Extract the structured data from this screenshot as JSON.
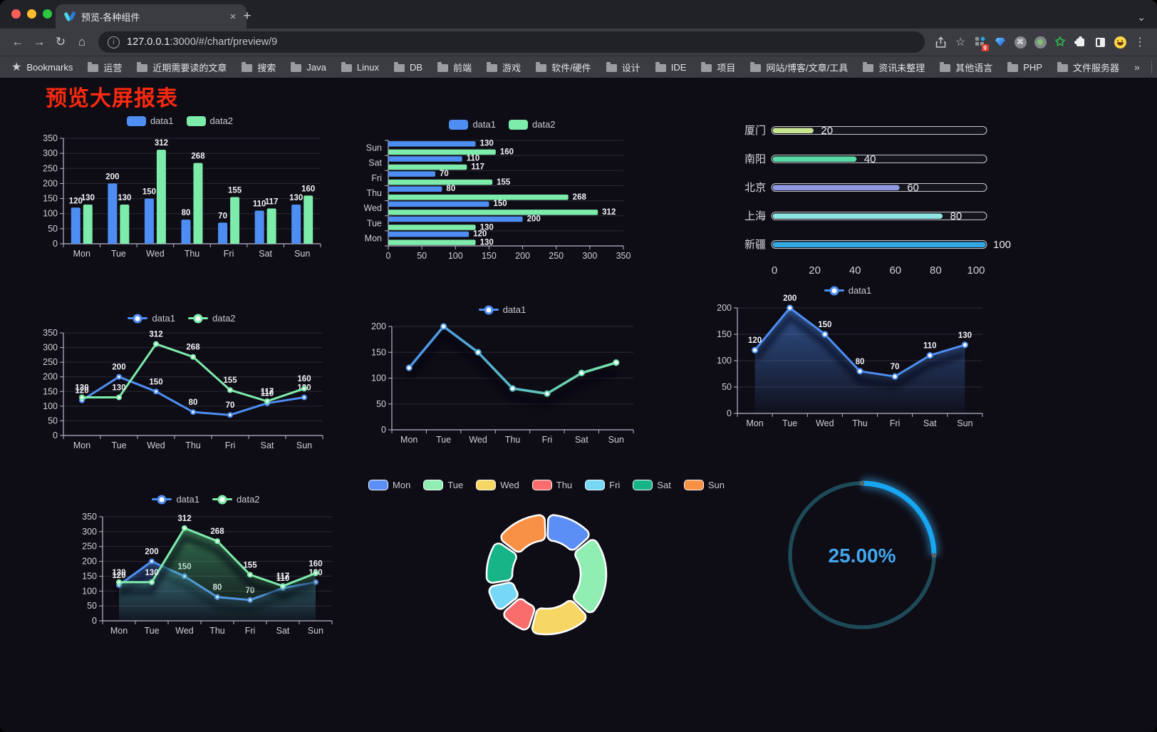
{
  "browser": {
    "tab_title": "预览-各种组件",
    "url_host": "127.0.0.1",
    "url_rest": ":3000/#/chart/preview/9",
    "bookmarks_label": "Bookmarks",
    "bookmarks": [
      "运营",
      "近期需要读的文章",
      "搜索",
      "Java",
      "Linux",
      "DB",
      "前端",
      "游戏",
      "软件/硬件",
      "设计",
      "IDE",
      "项目",
      "网站/博客/文章/工具",
      "资讯未整理",
      "其他语言",
      "PHP",
      "文件服务器"
    ],
    "bookmarks_overflow": "»",
    "other_bookmarks": "其他书签",
    "extension_badge": "9",
    "new_tab_label": "+",
    "close_tab_label": "×"
  },
  "page": {
    "title": "预览大屏报表",
    "title_color": "#fb2a10",
    "background": "#0e0c15"
  },
  "chart_data": [
    {
      "id": "c1",
      "type": "bar",
      "categories": [
        "Mon",
        "Tue",
        "Wed",
        "Thu",
        "Fri",
        "Sat",
        "Sun"
      ],
      "series": [
        {
          "name": "data1",
          "color": "#4e8ef2",
          "values": [
            120,
            200,
            150,
            80,
            70,
            110,
            130
          ]
        },
        {
          "name": "data2",
          "color": "#7debaa",
          "values": [
            130,
            130,
            312,
            268,
            155,
            117,
            160
          ]
        }
      ],
      "ylim": [
        0,
        350
      ],
      "ystep": 50,
      "labels": true,
      "legend_style": "rect",
      "grid": true
    },
    {
      "id": "c2",
      "type": "hbar",
      "categories": [
        "Mon",
        "Tue",
        "Wed",
        "Thu",
        "Fri",
        "Sat",
        "Sun"
      ],
      "series": [
        {
          "name": "data1",
          "color": "#4e8ef2",
          "values": [
            120,
            200,
            150,
            80,
            70,
            110,
            130
          ]
        },
        {
          "name": "data2",
          "color": "#7debaa",
          "values": [
            130,
            130,
            312,
            268,
            155,
            117,
            160
          ]
        }
      ],
      "xlim": [
        0,
        350
      ],
      "xstep": 50,
      "labels": true,
      "legend_style": "rect",
      "grid": true
    },
    {
      "id": "c3",
      "type": "progress",
      "max": 100,
      "axis": [
        0,
        20,
        40,
        60,
        80,
        100
      ],
      "rows": [
        {
          "label": "厦门",
          "value": 20,
          "color": "#c7e48e"
        },
        {
          "label": "南阳",
          "value": 40,
          "color": "#57d8a4"
        },
        {
          "label": "北京",
          "value": 60,
          "color": "#8e98e4"
        },
        {
          "label": "上海",
          "value": 80,
          "color": "#8fe3e0"
        },
        {
          "label": "新疆",
          "value": 100,
          "color": "#34a8e0"
        }
      ]
    },
    {
      "id": "c4",
      "type": "line",
      "categories": [
        "Mon",
        "Tue",
        "Wed",
        "Thu",
        "Fri",
        "Sat",
        "Sun"
      ],
      "series": [
        {
          "name": "data1",
          "color": "#4e8ef2",
          "values": [
            120,
            200,
            150,
            80,
            70,
            110,
            130
          ],
          "marker": "dot"
        },
        {
          "name": "data2",
          "color": "#7debaa",
          "values": [
            130,
            130,
            312,
            268,
            155,
            117,
            160
          ],
          "marker": "dot"
        }
      ],
      "ylim": [
        0,
        350
      ],
      "ystep": 50,
      "labels": true,
      "legend_style": "line",
      "grid": true
    },
    {
      "id": "c5",
      "type": "line",
      "categories": [
        "Mon",
        "Tue",
        "Wed",
        "Thu",
        "Fri",
        "Sat",
        "Sun"
      ],
      "series": [
        {
          "name": "data1",
          "color": "#4e8ef2",
          "gradient": [
            "#4e8ef2",
            "#50a8d8",
            "#62ceb2",
            "#7debaa"
          ],
          "values": [
            120,
            200,
            150,
            80,
            70,
            110,
            130
          ],
          "marker": "hollow",
          "shadow": true
        }
      ],
      "ylim": [
        0,
        200
      ],
      "ystep": 50,
      "labels": false,
      "legend_style": "line",
      "grid": true
    },
    {
      "id": "c6",
      "type": "line",
      "categories": [
        "Mon",
        "Tue",
        "Wed",
        "Thu",
        "Fri",
        "Sat",
        "Sun"
      ],
      "series": [
        {
          "name": "data1",
          "color": "#4e8ef2",
          "values": [
            120,
            200,
            150,
            80,
            70,
            110,
            130
          ],
          "marker": "hollow",
          "shadow": true,
          "area": [
            "rgba(78,142,242,0.55)",
            "rgba(78,142,242,0.03)"
          ]
        }
      ],
      "ylim": [
        0,
        200
      ],
      "ystep": 50,
      "labels": true,
      "legend_style": "line",
      "grid": true
    },
    {
      "id": "c7",
      "type": "line",
      "categories": [
        "Mon",
        "Tue",
        "Wed",
        "Thu",
        "Fri",
        "Sat",
        "Sun"
      ],
      "series": [
        {
          "name": "data1",
          "color": "#4e8ef2",
          "values": [
            120,
            200,
            150,
            80,
            70,
            110,
            130
          ],
          "marker": "dot",
          "shadow": true,
          "area": [
            "rgba(78,142,242,0.45)",
            "rgba(78,142,242,0.03)"
          ]
        },
        {
          "name": "data2",
          "color": "#7debaa",
          "values": [
            130,
            130,
            312,
            268,
            155,
            117,
            160
          ],
          "marker": "dot",
          "shadow": true,
          "area": [
            "rgba(80,190,125,0.55)",
            "rgba(80,190,125,0.04)"
          ]
        }
      ],
      "ylim": [
        0,
        350
      ],
      "ystep": 50,
      "labels": true,
      "legend_style": "line",
      "grid": true
    },
    {
      "id": "c8",
      "type": "donut",
      "categories": [
        "Mon",
        "Tue",
        "Wed",
        "Thu",
        "Fri",
        "Sat",
        "Sun"
      ],
      "values": [
        120,
        200,
        150,
        80,
        70,
        110,
        130
      ],
      "colors": [
        "#5b8ff5",
        "#90eeb2",
        "#f7d763",
        "#f96d6d",
        "#76d8f6",
        "#17b487",
        "#f89045"
      ],
      "legend_style": "rectb"
    },
    {
      "id": "c9",
      "type": "gauge",
      "value_text": "25.00%",
      "percent": 25,
      "progress_color": "#16a6f2",
      "track_color": "#1d4a57",
      "text_color": "#42a7ee"
    }
  ]
}
